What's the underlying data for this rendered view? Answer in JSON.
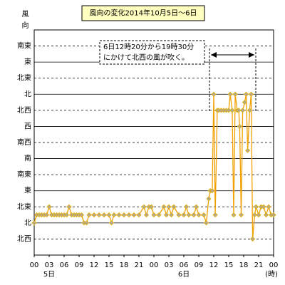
{
  "chart_data": {
    "type": "line",
    "title": "風向の変化2014年10月5日～6日",
    "ylabel": "風向",
    "xlabel": "(時)",
    "day_labels": [
      "5日",
      "6日"
    ],
    "annotation": [
      "6日12時20分から19時30分",
      "にかけて北西の風が吹く。"
    ],
    "x": [
      0,
      0.5,
      1,
      1.5,
      2,
      2.5,
      3,
      3.5,
      4,
      4.5,
      5,
      5.5,
      6,
      6.5,
      7,
      7.5,
      8,
      8.5,
      9,
      9.5,
      10,
      10.5,
      11,
      12,
      13,
      14,
      15,
      15.5,
      16,
      17,
      18,
      19,
      20,
      21,
      22,
      22.5,
      23,
      23.5,
      24,
      25,
      26,
      26.5,
      27,
      27.5,
      28,
      29,
      30,
      30.5,
      31,
      32,
      32.5,
      33,
      34,
      34.5,
      35,
      35.3,
      35.7,
      36,
      36.3,
      36.7,
      37,
      37.5,
      38,
      38.5,
      39,
      39.3,
      39.7,
      40,
      40.3,
      40.7,
      41,
      41.2,
      41.5,
      41.8,
      42.2,
      42.5,
      42.8,
      43.2,
      43.5,
      43.8,
      44.2,
      44.5,
      45,
      45.5,
      46,
      46.5,
      47,
      47.5,
      48
    ],
    "series": [
      {
        "name": "風向",
        "color": "#f0a000",
        "values": [
          1,
          1.5,
          1.5,
          1.5,
          1.5,
          1.5,
          2,
          1.5,
          1.5,
          1.5,
          1.5,
          1.5,
          1.5,
          1.5,
          2,
          1.5,
          1.5,
          1.5,
          1.5,
          1.5,
          1,
          1,
          1.5,
          1.5,
          1.5,
          1.5,
          1.5,
          1,
          1.5,
          1.5,
          1.5,
          1.5,
          1.5,
          1.5,
          2,
          1.5,
          2,
          2,
          1.5,
          1.5,
          2,
          1.5,
          2,
          1.5,
          2,
          1.5,
          1.5,
          2,
          1.5,
          1.5,
          2,
          1.5,
          1.5,
          1,
          2.5,
          3,
          3,
          9,
          1.5,
          8,
          8,
          8,
          8,
          8,
          8,
          9,
          8,
          1.5,
          9,
          8,
          8,
          7,
          1.5,
          8,
          8.5,
          9,
          5.5,
          8,
          9,
          0,
          1.5,
          2,
          1.5,
          2,
          2,
          1.5,
          2,
          1.5,
          1.5
        ]
      }
    ],
    "xlim": [
      0,
      48
    ],
    "xticks": [
      {
        "value": 0,
        "label": "00"
      },
      {
        "value": 3,
        "label": "03"
      },
      {
        "value": 6,
        "label": "06"
      },
      {
        "value": 9,
        "label": "09"
      },
      12,
      15,
      18,
      21,
      {
        "value": 24,
        "label": "00"
      },
      {
        "value": 27,
        "label": "03"
      },
      {
        "value": 30,
        "label": "06"
      },
      {
        "value": 33,
        "label": "09"
      },
      {
        "value": 36,
        "label": "12"
      },
      {
        "value": 39,
        "label": "15"
      },
      {
        "value": 42,
        "label": "18"
      },
      {
        "value": 45,
        "label": "21"
      },
      {
        "value": 48,
        "label": "00"
      }
    ],
    "ylim": [
      -1,
      13
    ],
    "yticks": [
      {
        "value": 0,
        "label": "北西"
      },
      {
        "value": 1,
        "label": "北"
      },
      {
        "value": 2,
        "label": "北東"
      },
      {
        "value": 3,
        "label": "東"
      },
      {
        "value": 4,
        "label": "南東"
      },
      {
        "value": 5,
        "label": "南"
      },
      {
        "value": 6,
        "label": "南西"
      },
      {
        "value": 7,
        "label": "西"
      },
      {
        "value": 8,
        "label": "北西"
      },
      {
        "value": 9,
        "label": "北"
      },
      {
        "value": 10,
        "label": "北東"
      },
      {
        "value": 11,
        "label": "東"
      },
      {
        "value": 12,
        "label": "南東"
      }
    ],
    "grid": true
  }
}
